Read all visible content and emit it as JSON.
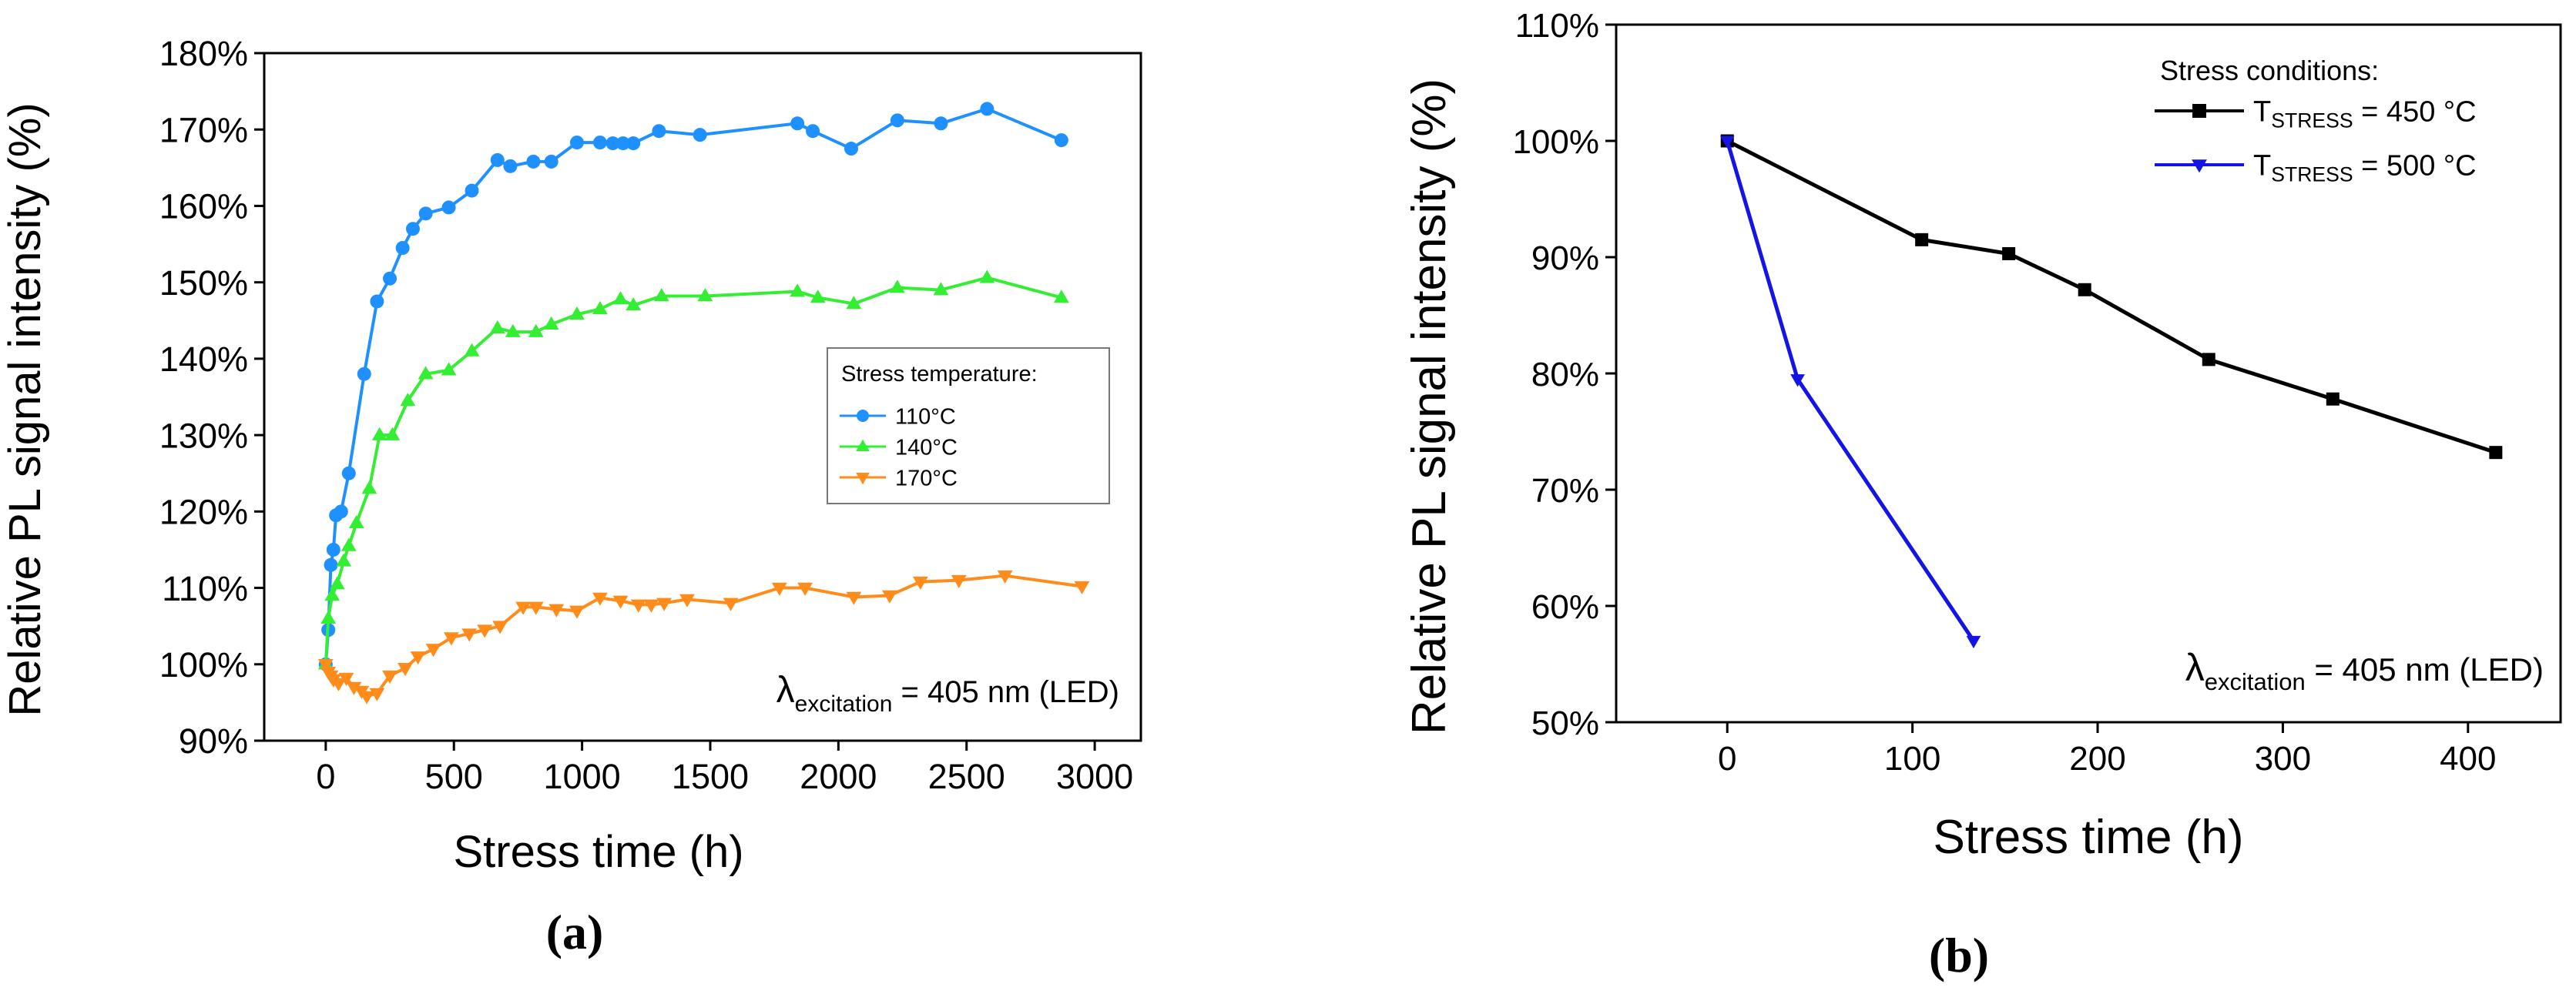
{
  "chart_data": [
    {
      "type": "line",
      "panel_label": "(a)",
      "xlabel": "Stress time (h)",
      "ylabel": "Relative PL signal intensity (%)",
      "xlim": [
        -240,
        3180
      ],
      "ylim": [
        90,
        180
      ],
      "xticks": [
        0,
        500,
        1000,
        1500,
        2000,
        2500,
        3000
      ],
      "xtick_labels": [
        "0",
        "500",
        "1000",
        "1500",
        "2000",
        "2500",
        "3000"
      ],
      "yticks": [
        90,
        100,
        110,
        120,
        130,
        140,
        150,
        160,
        170,
        180
      ],
      "ytick_labels": [
        "90%",
        "100%",
        "110%",
        "120%",
        "130%",
        "140%",
        "150%",
        "160%",
        "170%",
        "180%"
      ],
      "legend": {
        "title": "Stress temperature:",
        "position": "center-right"
      },
      "annotation": {
        "main": "λ",
        "sub": "excitation",
        "rest": " = 405 nm (LED)"
      },
      "series": [
        {
          "name": "110°C",
          "color": "#1E90FF",
          "marker": "circle",
          "x": [
            0,
            10,
            20,
            30,
            40,
            60,
            90,
            150,
            200,
            250,
            300,
            340,
            390,
            480,
            570,
            670,
            720,
            810,
            880,
            980,
            1070,
            1120,
            1160,
            1200,
            1300,
            1460,
            1840,
            1900,
            2050,
            2230,
            2400,
            2580,
            2870
          ],
          "y": [
            100,
            104.5,
            113,
            115,
            119.5,
            120,
            125,
            138,
            147.5,
            150.5,
            154.5,
            157,
            159,
            159.8,
            162,
            166,
            165.2,
            165.8,
            165.8,
            168.3,
            168.3,
            168.2,
            168.2,
            168.2,
            169.8,
            169.3,
            170.8,
            169.8,
            167.5,
            171.2,
            170.8,
            172.7,
            168.6
          ]
        },
        {
          "name": "140°C",
          "color": "#33EE33",
          "marker": "triangle-up",
          "x": [
            0,
            10,
            25,
            45,
            70,
            90,
            120,
            170,
            210,
            260,
            320,
            390,
            480,
            570,
            670,
            730,
            820,
            880,
            980,
            1070,
            1150,
            1200,
            1310,
            1480,
            1840,
            1920,
            2060,
            2230,
            2400,
            2580,
            2870
          ],
          "y": [
            100,
            106,
            109,
            110.5,
            113.5,
            115.5,
            118.5,
            123,
            130,
            130,
            134.5,
            138,
            138.5,
            141,
            144,
            143.5,
            143.5,
            144.5,
            145.8,
            146.5,
            147.8,
            147,
            148.2,
            148.2,
            148.8,
            148,
            147.2,
            149.3,
            149,
            150.6,
            148
          ]
        },
        {
          "name": "170°C",
          "color": "#FF8C1A",
          "marker": "triangle-down",
          "x": [
            0,
            10,
            20,
            30,
            50,
            80,
            110,
            140,
            160,
            200,
            250,
            310,
            360,
            420,
            490,
            560,
            620,
            680,
            770,
            820,
            900,
            980,
            1070,
            1150,
            1220,
            1270,
            1320,
            1410,
            1580,
            1770,
            1870,
            2060,
            2200,
            2320,
            2470,
            2650,
            2950
          ],
          "y": [
            100,
            99,
            98.5,
            98,
            97.5,
            98.2,
            97,
            96.5,
            95.8,
            96.2,
            98.5,
            99.5,
            101,
            102,
            103.5,
            104,
            104.5,
            105,
            107.5,
            107.5,
            107.2,
            107,
            108.7,
            108.3,
            107.8,
            107.8,
            108,
            108.5,
            108,
            110,
            110,
            108.8,
            109,
            110.8,
            111,
            111.6,
            110.2
          ]
        }
      ]
    },
    {
      "type": "line",
      "panel_label": "(b)",
      "xlabel": "Stress time (h)",
      "ylabel": "Relative PL signal intensity (%)",
      "xlim": [
        -60,
        450
      ],
      "ylim": [
        50,
        110
      ],
      "xticks": [
        0,
        100,
        200,
        300,
        400
      ],
      "xtick_labels": [
        "0",
        "100",
        "200",
        "300",
        "400"
      ],
      "yticks": [
        50,
        60,
        70,
        80,
        90,
        100,
        110
      ],
      "ytick_labels": [
        "50%",
        "60%",
        "70%",
        "80%",
        "90%",
        "100%",
        "110%"
      ],
      "legend": {
        "title": "Stress conditions:",
        "position": "top-right"
      },
      "annotation": {
        "main": "λ",
        "sub": "excitation",
        "rest": " = 405 nm (LED)"
      },
      "series": [
        {
          "name": "TSTRESS = 450 °C",
          "label_main": "T",
          "label_sub": "STRESS",
          "label_rest": " = 450 °C",
          "color": "#000000",
          "marker": "square",
          "x": [
            0,
            105,
            152,
            193,
            260,
            327,
            415
          ],
          "y": [
            100,
            91.5,
            90.3,
            87.2,
            81.2,
            77.8,
            73.2
          ]
        },
        {
          "name": "TSTRESS = 500 °C",
          "label_main": "T",
          "label_sub": "STRESS",
          "label_rest": " = 500 °C",
          "color": "#1414E6",
          "marker": "triangle-down",
          "x": [
            0,
            38,
            133
          ],
          "y": [
            100,
            79.5,
            57
          ]
        }
      ]
    }
  ]
}
